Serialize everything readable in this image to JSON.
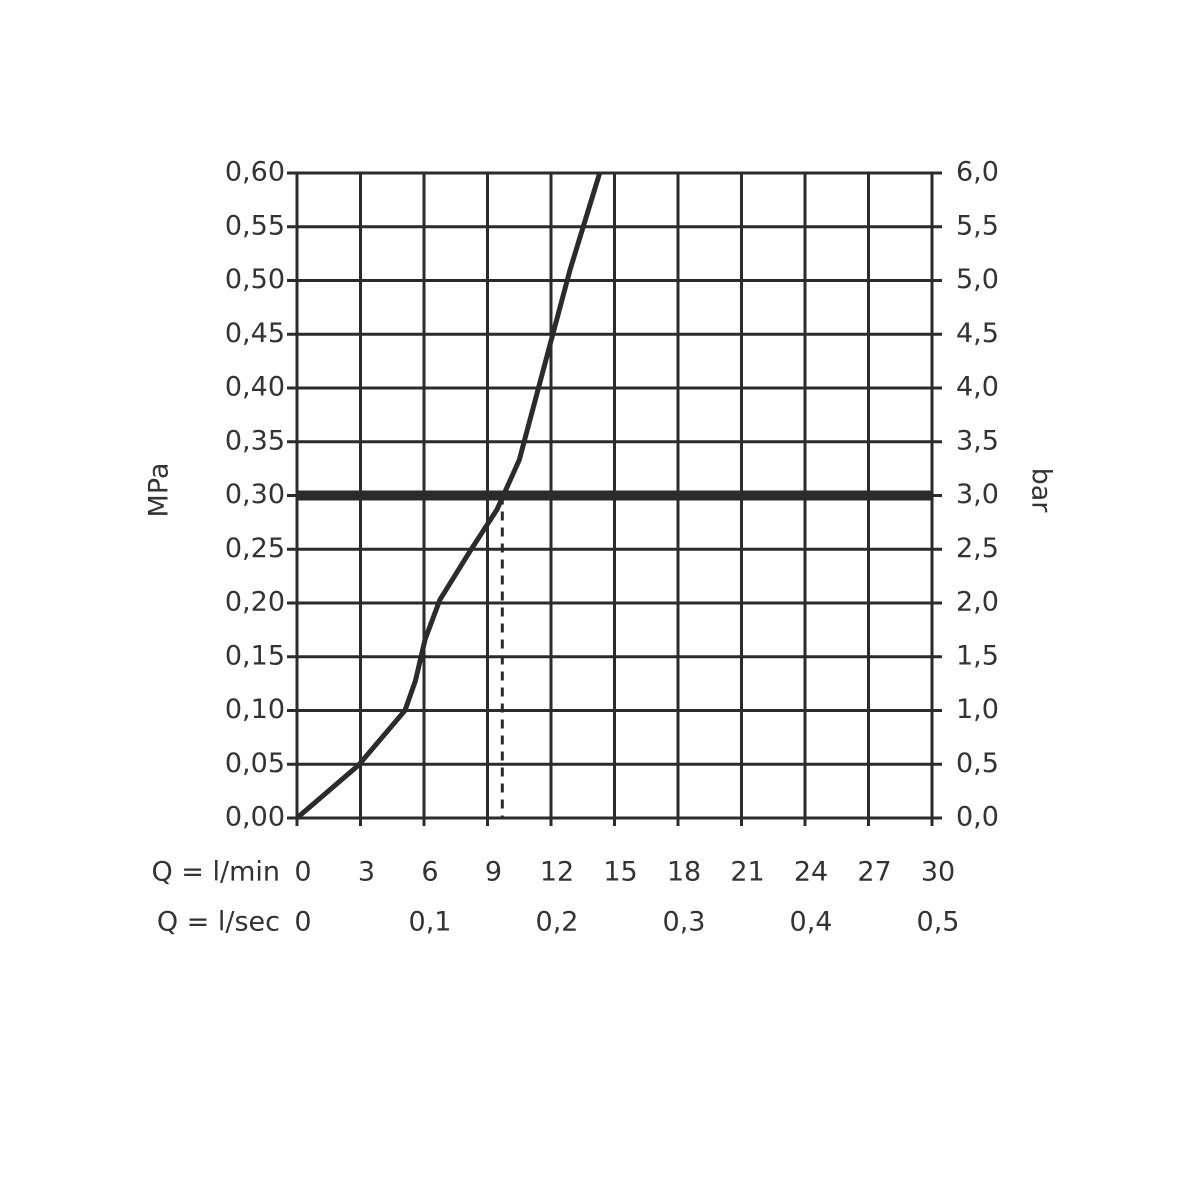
{
  "chart_data": {
    "type": "line",
    "x_label": "Q = l/min",
    "x2_label": "Q = l/sec",
    "y_label": "MPa",
    "y2_label": "bar",
    "series": [
      {
        "color": "#2b2b2b",
        "x": [
          0,
          2.9,
          5.1,
          5.6,
          6.05,
          6.75,
          8.2,
          9.45,
          10.5,
          11.95,
          12.9,
          14.3
        ],
        "values": [
          0,
          0.049,
          0.1,
          0.128,
          0.166,
          0.203,
          0.249,
          0.287,
          0.333,
          0.44,
          0.51,
          0.6
        ]
      }
    ],
    "reference_line": 0.3,
    "marker_x": 9.7,
    "xlim": [
      0,
      30
    ],
    "xticks": [
      0,
      3,
      6,
      9,
      12,
      15,
      18,
      21,
      24,
      27,
      30
    ],
    "x2lim": [
      0,
      0.5
    ],
    "x2ticks": [
      0,
      {
        "value": 0.1,
        "label": "0,1"
      },
      {
        "value": 0.2,
        "label": "0,2"
      },
      {
        "value": 0.3,
        "label": "0,3"
      },
      {
        "value": 0.4,
        "label": "0,4"
      },
      {
        "value": 0.5,
        "label": "0,5"
      }
    ],
    "ylim": [
      0,
      0.6
    ],
    "yticks": [
      {
        "value": 0,
        "label": "0,00"
      },
      {
        "value": 0.05,
        "label": "0,05"
      },
      {
        "value": 0.1,
        "label": "0,10"
      },
      {
        "value": 0.15,
        "label": "0,15"
      },
      {
        "value": 0.2,
        "label": "0,20"
      },
      {
        "value": 0.25,
        "label": "0,25"
      },
      {
        "value": 0.3,
        "label": "0,30"
      },
      {
        "value": 0.35,
        "label": "0,35"
      },
      {
        "value": 0.4,
        "label": "0,40"
      },
      {
        "value": 0.45,
        "label": "0,45"
      },
      {
        "value": 0.5,
        "label": "0,50"
      },
      {
        "value": 0.55,
        "label": "0,55"
      },
      {
        "value": 0.6,
        "label": "0,60"
      }
    ],
    "y2lim": [
      0,
      6
    ],
    "y2ticks": [
      {
        "value": 0,
        "label": "0,0"
      },
      {
        "value": 0.5,
        "label": "0,5"
      },
      {
        "value": 1,
        "label": "1,0"
      },
      {
        "value": 1.5,
        "label": "1,5"
      },
      {
        "value": 2,
        "label": "2,0"
      },
      {
        "value": 2.5,
        "label": "2,5"
      },
      {
        "value": 3,
        "label": "3,0"
      },
      {
        "value": 3.5,
        "label": "3,5"
      },
      {
        "value": 4,
        "label": "4,0"
      },
      {
        "value": 4.5,
        "label": "4,5"
      },
      {
        "value": 5,
        "label": "5,0"
      },
      {
        "value": 5.5,
        "label": "5,5"
      },
      {
        "value": 6,
        "label": "6,0"
      }
    ],
    "grid": true
  }
}
